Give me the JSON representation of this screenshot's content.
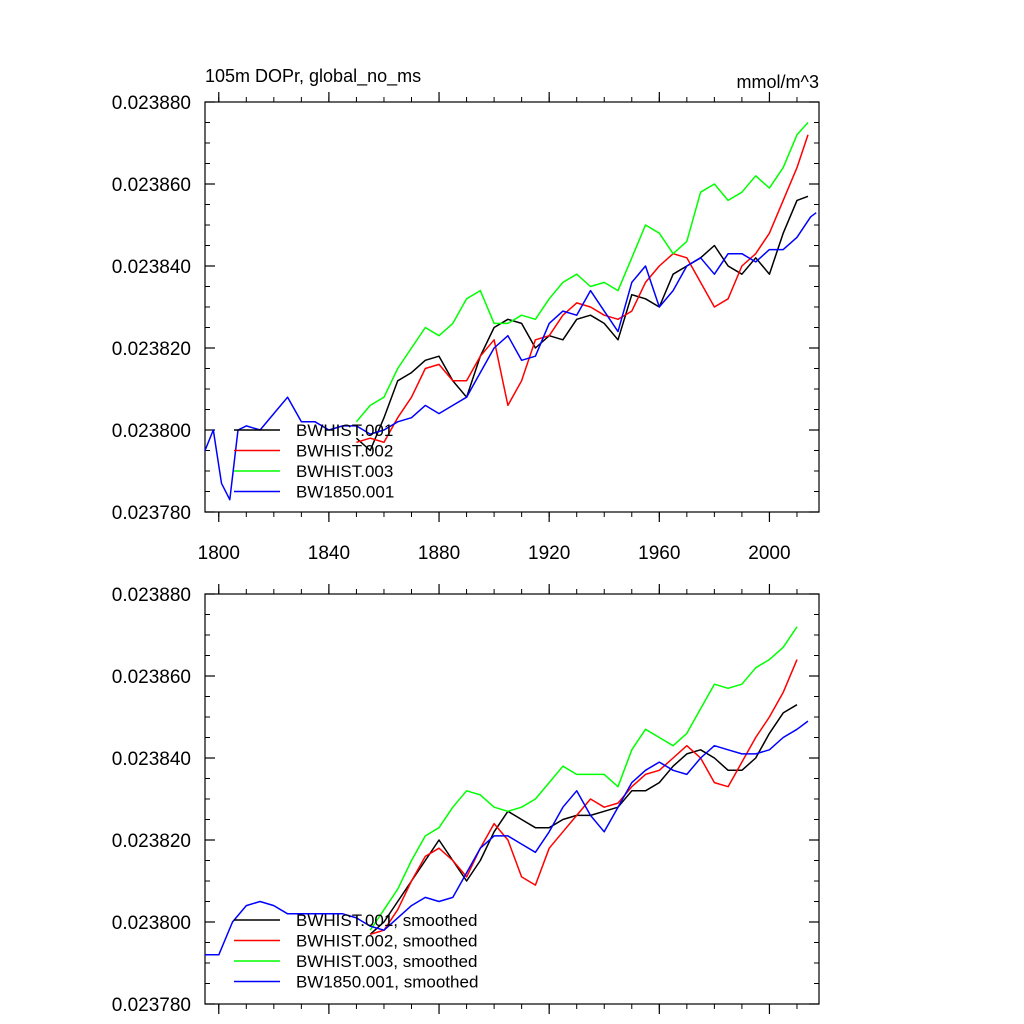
{
  "chart_data": [
    {
      "type": "line",
      "title_left": "105m DOPr, global_no_ms",
      "title_right": "mmol/m^3",
      "xlim": [
        1795,
        2018
      ],
      "ylim": [
        0.02378,
        0.02388
      ],
      "x_ticks": [
        1800,
        1840,
        1880,
        1920,
        1960,
        2000
      ],
      "y_ticks": [
        0.02378,
        0.0238,
        0.02382,
        0.02384,
        0.02386,
        0.02388
      ],
      "y_tick_labels": [
        "0.023780",
        "0.023800",
        "0.023820",
        "0.023840",
        "0.023860",
        "0.023880"
      ],
      "x_tick_labels": [
        "1800",
        "1840",
        "1880",
        "1920",
        "1960",
        "2000"
      ],
      "legend": {
        "placement": "lower-left",
        "entries": [
          "BWHIST.001",
          "BWHIST.002",
          "BWHIST.003",
          "BW1850.001"
        ]
      },
      "series": [
        {
          "name": "BWHIST.001",
          "color": "#000000",
          "x": [
            1850,
            1855,
            1860,
            1865,
            1870,
            1875,
            1880,
            1885,
            1890,
            1895,
            1900,
            1905,
            1910,
            1915,
            1920,
            1925,
            1930,
            1935,
            1940,
            1945,
            1950,
            1955,
            1960,
            1965,
            1970,
            1975,
            1980,
            1985,
            1990,
            1995,
            2000,
            2005,
            2010,
            2014
          ],
          "y": [
            0.023798,
            0.023795,
            0.023803,
            0.023812,
            0.023814,
            0.023817,
            0.023818,
            0.023812,
            0.023808,
            0.023818,
            0.023825,
            0.023827,
            0.023826,
            0.02382,
            0.023823,
            0.023822,
            0.023827,
            0.023828,
            0.023826,
            0.023822,
            0.023833,
            0.023832,
            0.02383,
            0.023838,
            0.02384,
            0.023842,
            0.023845,
            0.02384,
            0.023838,
            0.023842,
            0.023838,
            0.023848,
            0.023856,
            0.023857
          ]
        },
        {
          "name": "BWHIST.002",
          "color": "#ff0000",
          "x": [
            1850,
            1855,
            1860,
            1865,
            1870,
            1875,
            1880,
            1885,
            1890,
            1895,
            1900,
            1905,
            1910,
            1915,
            1920,
            1925,
            1930,
            1935,
            1940,
            1945,
            1950,
            1955,
            1960,
            1965,
            1970,
            1975,
            1980,
            1985,
            1990,
            1995,
            2000,
            2005,
            2010,
            2014
          ],
          "y": [
            0.023797,
            0.023798,
            0.023797,
            0.023803,
            0.023808,
            0.023815,
            0.023816,
            0.023812,
            0.023812,
            0.023818,
            0.023822,
            0.023806,
            0.023812,
            0.023822,
            0.023823,
            0.023828,
            0.023831,
            0.02383,
            0.023828,
            0.023827,
            0.023829,
            0.023836,
            0.02384,
            0.023843,
            0.023842,
            0.023836,
            0.02383,
            0.023832,
            0.02384,
            0.023843,
            0.023848,
            0.023856,
            0.023864,
            0.023872
          ]
        },
        {
          "name": "BWHIST.003",
          "color": "#00ff00",
          "x": [
            1850,
            1855,
            1860,
            1865,
            1870,
            1875,
            1880,
            1885,
            1890,
            1895,
            1900,
            1905,
            1910,
            1915,
            1920,
            1925,
            1930,
            1935,
            1940,
            1945,
            1950,
            1955,
            1960,
            1965,
            1970,
            1975,
            1980,
            1985,
            1990,
            1995,
            2000,
            2005,
            2010,
            2014
          ],
          "y": [
            0.023802,
            0.023806,
            0.023808,
            0.023815,
            0.02382,
            0.023825,
            0.023823,
            0.023826,
            0.023832,
            0.023834,
            0.023826,
            0.023826,
            0.023828,
            0.023827,
            0.023832,
            0.023836,
            0.023838,
            0.023835,
            0.023836,
            0.023834,
            0.023842,
            0.02385,
            0.023848,
            0.023843,
            0.023846,
            0.023858,
            0.02386,
            0.023856,
            0.023858,
            0.023862,
            0.023859,
            0.023864,
            0.023872,
            0.023875
          ]
        },
        {
          "name": "BW1850.001",
          "color": "#0000ff",
          "x": [
            1795,
            1798,
            1801,
            1804,
            1807,
            1810,
            1815,
            1820,
            1825,
            1830,
            1835,
            1840,
            1845,
            1850,
            1855,
            1860,
            1865,
            1870,
            1875,
            1880,
            1885,
            1890,
            1895,
            1900,
            1905,
            1910,
            1915,
            1920,
            1925,
            1930,
            1935,
            1940,
            1945,
            1950,
            1955,
            1960,
            1965,
            1970,
            1975,
            1980,
            1985,
            1990,
            1995,
            2000,
            2005,
            2010,
            2015,
            2017
          ],
          "y": [
            0.023795,
            0.0238,
            0.023787,
            0.023783,
            0.0238,
            0.023801,
            0.0238,
            0.023804,
            0.023808,
            0.023802,
            0.023802,
            0.0238,
            0.023801,
            0.023801,
            0.023799,
            0.0238,
            0.023802,
            0.023803,
            0.023806,
            0.023804,
            0.023806,
            0.023808,
            0.023814,
            0.02382,
            0.023823,
            0.023817,
            0.023818,
            0.023826,
            0.023829,
            0.023828,
            0.023834,
            0.023829,
            0.023824,
            0.023836,
            0.02384,
            0.02383,
            0.023834,
            0.02384,
            0.023842,
            0.023838,
            0.023843,
            0.023843,
            0.023841,
            0.023844,
            0.023844,
            0.023847,
            0.023852,
            0.023853
          ]
        }
      ]
    },
    {
      "type": "line",
      "xlim": [
        1795,
        2018
      ],
      "ylim": [
        0.02378,
        0.02388
      ],
      "x_ticks": [
        1800,
        1840,
        1880,
        1920,
        1960,
        2000
      ],
      "y_ticks": [
        0.02378,
        0.0238,
        0.02382,
        0.02384,
        0.02386,
        0.02388
      ],
      "y_tick_labels": [
        "0.023780",
        "0.023800",
        "0.023820",
        "0.023840",
        "0.023860",
        "0.023880"
      ],
      "legend": {
        "placement": "lower-left",
        "entries": [
          "BWHIST.001, smoothed",
          "BWHIST.002, smoothed",
          "BWHIST.003, smoothed",
          "BW1850.001, smoothed"
        ]
      },
      "series": [
        {
          "name": "BWHIST.001, smoothed",
          "color": "#000000",
          "x": [
            1855,
            1860,
            1865,
            1870,
            1875,
            1880,
            1885,
            1890,
            1895,
            1900,
            1905,
            1910,
            1915,
            1920,
            1925,
            1930,
            1935,
            1940,
            1945,
            1950,
            1955,
            1960,
            1965,
            1970,
            1975,
            1980,
            1985,
            1990,
            1995,
            2000,
            2005,
            2010
          ],
          "y": [
            0.023797,
            0.0238,
            0.023805,
            0.02381,
            0.023815,
            0.02382,
            0.023815,
            0.02381,
            0.023815,
            0.023822,
            0.023827,
            0.023825,
            0.023823,
            0.023823,
            0.023825,
            0.023826,
            0.023826,
            0.023827,
            0.023828,
            0.023832,
            0.023832,
            0.023834,
            0.023838,
            0.023841,
            0.023842,
            0.02384,
            0.023837,
            0.023837,
            0.02384,
            0.023846,
            0.023851,
            0.023853
          ]
        },
        {
          "name": "BWHIST.002, smoothed",
          "color": "#ff0000",
          "x": [
            1855,
            1860,
            1865,
            1870,
            1875,
            1880,
            1885,
            1890,
            1895,
            1900,
            1905,
            1910,
            1915,
            1920,
            1925,
            1930,
            1935,
            1940,
            1945,
            1950,
            1955,
            1960,
            1965,
            1970,
            1975,
            1980,
            1985,
            1990,
            1995,
            2000,
            2005,
            2010
          ],
          "y": [
            0.023797,
            0.023798,
            0.023803,
            0.02381,
            0.023816,
            0.023818,
            0.023815,
            0.023811,
            0.023818,
            0.023824,
            0.02382,
            0.023811,
            0.023809,
            0.023818,
            0.023822,
            0.023826,
            0.02383,
            0.023828,
            0.023829,
            0.023833,
            0.023836,
            0.023837,
            0.02384,
            0.023843,
            0.02384,
            0.023834,
            0.023833,
            0.023839,
            0.023845,
            0.02385,
            0.023856,
            0.023864
          ]
        },
        {
          "name": "BWHIST.003, smoothed",
          "color": "#00ff00",
          "x": [
            1855,
            1860,
            1865,
            1870,
            1875,
            1880,
            1885,
            1890,
            1895,
            1900,
            1905,
            1910,
            1915,
            1920,
            1925,
            1930,
            1935,
            1940,
            1945,
            1950,
            1955,
            1960,
            1965,
            1970,
            1975,
            1980,
            1985,
            1990,
            1995,
            2000,
            2005,
            2010
          ],
          "y": [
            0.023798,
            0.023803,
            0.023808,
            0.023815,
            0.023821,
            0.023823,
            0.023828,
            0.023832,
            0.023831,
            0.023828,
            0.023827,
            0.023828,
            0.02383,
            0.023834,
            0.023838,
            0.023836,
            0.023836,
            0.023836,
            0.023833,
            0.023842,
            0.023847,
            0.023845,
            0.023843,
            0.023846,
            0.023852,
            0.023858,
            0.023857,
            0.023858,
            0.023862,
            0.023864,
            0.023867,
            0.023872
          ]
        },
        {
          "name": "BW1850.001, smoothed",
          "color": "#0000ff",
          "x": [
            1795,
            1800,
            1805,
            1810,
            1815,
            1820,
            1825,
            1830,
            1835,
            1840,
            1845,
            1850,
            1855,
            1860,
            1865,
            1870,
            1875,
            1880,
            1885,
            1890,
            1895,
            1900,
            1905,
            1910,
            1915,
            1920,
            1925,
            1930,
            1935,
            1940,
            1945,
            1950,
            1955,
            1960,
            1965,
            1970,
            1975,
            1980,
            1985,
            1990,
            1995,
            2000,
            2005,
            2010,
            2014
          ],
          "y": [
            0.023792,
            0.023792,
            0.0238,
            0.023804,
            0.023805,
            0.023804,
            0.023802,
            0.023802,
            0.023802,
            0.023802,
            0.023802,
            0.023801,
            0.023799,
            0.023798,
            0.023801,
            0.023804,
            0.023806,
            0.023805,
            0.023806,
            0.023812,
            0.023818,
            0.023821,
            0.023821,
            0.023819,
            0.023817,
            0.023822,
            0.023828,
            0.023832,
            0.023826,
            0.023822,
            0.023828,
            0.023834,
            0.023837,
            0.023839,
            0.023837,
            0.023836,
            0.02384,
            0.023843,
            0.023842,
            0.023841,
            0.023841,
            0.023842,
            0.023845,
            0.023847,
            0.023849
          ]
        }
      ]
    }
  ]
}
